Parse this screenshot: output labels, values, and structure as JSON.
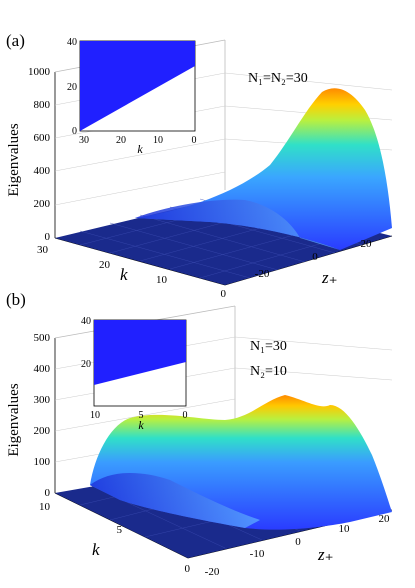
{
  "chart_data": [
    {
      "type": "surface",
      "panel": "(a)",
      "annotation": [
        "N₁=N₂=30"
      ],
      "zlabel": "Eigenvalues",
      "xlabel": "k",
      "ylabel": "z₊",
      "zlim": [
        0,
        1000
      ],
      "z_ticks": [
        "0",
        "200",
        "400",
        "600",
        "800",
        "1000"
      ],
      "k_ticks": [
        "30",
        "20",
        "10",
        "0"
      ],
      "zplus_ticks": [
        "-20",
        "0",
        "20"
      ],
      "peak_eigenvalue": 920,
      "inset": {
        "type": "region",
        "xlabel": "k",
        "x_ticks": [
          "30",
          "20",
          "10",
          "0"
        ],
        "y_ticks": [
          "0",
          "20",
          "40"
        ],
        "boundary": {
          "k": [
            30,
            0
          ],
          "y": [
            0,
            30
          ]
        },
        "fill": "#2020ff"
      }
    },
    {
      "type": "surface",
      "panel": "(b)",
      "annotation": [
        "N₁=30",
        "N₂=10"
      ],
      "zlabel": "Eigenvalues",
      "xlabel": "k",
      "ylabel": "z₊",
      "zlim": [
        0,
        500
      ],
      "z_ticks": [
        "0",
        "100",
        "200",
        "300",
        "400",
        "500"
      ],
      "k_ticks": [
        "10",
        "5",
        "0"
      ],
      "zplus_ticks": [
        "-20",
        "-10",
        "0",
        "10",
        "20"
      ],
      "peak_eigenvalue": 300,
      "inset": {
        "type": "region",
        "xlabel": "k",
        "x_ticks": [
          "10",
          "5",
          "0"
        ],
        "y_ticks": [
          "20",
          "40"
        ],
        "boundary": {
          "k": [
            10,
            0
          ],
          "y": [
            13,
            22
          ]
        },
        "fill": "#2020ff"
      }
    }
  ],
  "colors": {
    "floor": "#1a2a8c",
    "surface_low": "#3050ff",
    "surface_mid": "#30e0d0",
    "surface_high": "#ffa000",
    "inset_fill": "#2020ff"
  }
}
